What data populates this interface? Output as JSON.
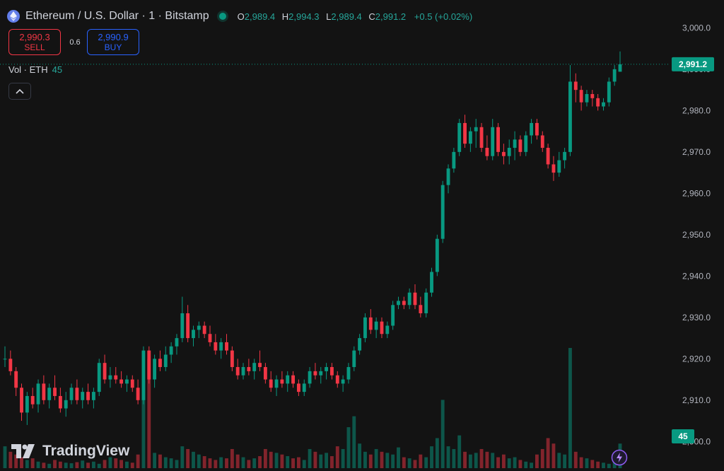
{
  "header": {
    "symbol": "Ethereum / U.S. Dollar · 1 · Bitstamp",
    "o_key": "O",
    "o_val": "2,989.4",
    "h_key": "H",
    "h_val": "2,994.3",
    "l_key": "L",
    "l_val": "2,989.4",
    "c_key": "C",
    "c_val": "2,991.2",
    "change": "+0.5 (+0.02%)"
  },
  "trade": {
    "sell_price": "2,990.3",
    "sell_label": "SELL",
    "spread": "0.6",
    "buy_price": "2,990.9",
    "buy_label": "BUY"
  },
  "volume": {
    "label": "Vol · ETH",
    "value": "45"
  },
  "brand": {
    "name": "TradingView"
  },
  "icons": {
    "symbol": "ethereum-icon",
    "collapse": "chevron-up-icon",
    "brand": "tradingview-logo-icon",
    "flash": "lightning-icon"
  },
  "colors": {
    "up": "#089981",
    "down": "#f23645",
    "background": "#131313",
    "axis_text": "#b2b5be"
  },
  "chart_data": {
    "type": "candlestick",
    "interval": "1",
    "y_axis": {
      "ylim": [
        2898,
        3004
      ],
      "ticks": [
        2900,
        2910,
        2920,
        2930,
        2940,
        2950,
        2960,
        2970,
        2980,
        2990,
        3000
      ],
      "tick_labels": [
        "2,900.0",
        "2,910.0",
        "2,920.0",
        "2,930.0",
        "2,940.0",
        "2,950.0",
        "2,960.0",
        "2,970.0",
        "2,980.0",
        "2,990.0",
        "3,000.0"
      ]
    },
    "last_price": 2991.2,
    "last_price_label": "2,991.2",
    "last_volume": 45,
    "last_volume_label": "45",
    "volume_max": 220,
    "ohlc": [
      [
        2920,
        2923,
        2918,
        2920
      ],
      [
        2920,
        2922,
        2916,
        2917
      ],
      [
        2917,
        2918,
        2911,
        2913
      ],
      [
        2913,
        2914,
        2905,
        2907
      ],
      [
        2907,
        2912,
        2904,
        2911
      ],
      [
        2911,
        2913,
        2908,
        2909
      ],
      [
        2909,
        2915,
        2907,
        2914
      ],
      [
        2914,
        2916,
        2909,
        2910
      ],
      [
        2910,
        2914,
        2908,
        2913
      ],
      [
        2913,
        2916,
        2910,
        2911
      ],
      [
        2911,
        2913,
        2907,
        2908
      ],
      [
        2908,
        2912,
        2906,
        2910
      ],
      [
        2910,
        2914,
        2909,
        2913
      ],
      [
        2913,
        2915,
        2909,
        2910
      ],
      [
        2910,
        2913,
        2908,
        2912
      ],
      [
        2912,
        2914,
        2909,
        2910
      ],
      [
        2910,
        2913,
        2908,
        2912
      ],
      [
        2912,
        2920,
        2911,
        2919
      ],
      [
        2919,
        2921,
        2914,
        2915
      ],
      [
        2915,
        2918,
        2913,
        2916
      ],
      [
        2916,
        2918,
        2914,
        2915
      ],
      [
        2915,
        2917,
        2913,
        2914
      ],
      [
        2914,
        2916,
        2912,
        2915
      ],
      [
        2915,
        2916,
        2912,
        2913
      ],
      [
        2913,
        2915,
        2909,
        2910
      ],
      [
        2910,
        2923,
        2909,
        2922
      ],
      [
        2922,
        2923,
        2914,
        2915
      ],
      [
        2915,
        2921,
        2913,
        2920
      ],
      [
        2920,
        2922,
        2917,
        2918
      ],
      [
        2918,
        2923,
        2917,
        2921
      ],
      [
        2921,
        2924,
        2919,
        2923
      ],
      [
        2923,
        2926,
        2921,
        2925
      ],
      [
        2925,
        2935,
        2924,
        2931
      ],
      [
        2931,
        2933,
        2924,
        2925
      ],
      [
        2925,
        2928,
        2923,
        2927
      ],
      [
        2927,
        2929,
        2925,
        2928
      ],
      [
        2928,
        2929,
        2925,
        2926
      ],
      [
        2926,
        2928,
        2923,
        2924
      ],
      [
        2924,
        2926,
        2921,
        2922
      ],
      [
        2922,
        2925,
        2920,
        2924
      ],
      [
        2924,
        2926,
        2921,
        2922
      ],
      [
        2922,
        2923,
        2917,
        2918
      ],
      [
        2918,
        2920,
        2915,
        2916
      ],
      [
        2916,
        2919,
        2915,
        2918
      ],
      [
        2918,
        2920,
        2916,
        2917
      ],
      [
        2917,
        2920,
        2915,
        2919
      ],
      [
        2919,
        2922,
        2917,
        2918
      ],
      [
        2918,
        2919,
        2914,
        2915
      ],
      [
        2915,
        2917,
        2912,
        2913
      ],
      [
        2913,
        2916,
        2911,
        2915
      ],
      [
        2915,
        2917,
        2913,
        2914
      ],
      [
        2914,
        2917,
        2912,
        2916
      ],
      [
        2916,
        2917,
        2913,
        2914
      ],
      [
        2914,
        2915,
        2911,
        2912
      ],
      [
        2912,
        2915,
        2911,
        2914
      ],
      [
        2914,
        2918,
        2913,
        2917
      ],
      [
        2917,
        2919,
        2915,
        2916
      ],
      [
        2916,
        2918,
        2914,
        2917
      ],
      [
        2917,
        2919,
        2915,
        2918
      ],
      [
        2918,
        2919,
        2915,
        2916
      ],
      [
        2916,
        2917,
        2913,
        2914
      ],
      [
        2914,
        2916,
        2912,
        2915
      ],
      [
        2915,
        2919,
        2914,
        2918
      ],
      [
        2918,
        2923,
        2917,
        2922
      ],
      [
        2922,
        2926,
        2921,
        2925
      ],
      [
        2925,
        2931,
        2924,
        2930
      ],
      [
        2930,
        2932,
        2926,
        2927
      ],
      [
        2927,
        2930,
        2925,
        2929
      ],
      [
        2929,
        2930,
        2925,
        2926
      ],
      [
        2926,
        2929,
        2925,
        2928
      ],
      [
        2928,
        2934,
        2927,
        2933
      ],
      [
        2933,
        2935,
        2932,
        2934
      ],
      [
        2934,
        2935,
        2932,
        2933
      ],
      [
        2933,
        2937,
        2932,
        2936
      ],
      [
        2936,
        2938,
        2932,
        2933
      ],
      [
        2933,
        2935,
        2930,
        2931
      ],
      [
        2931,
        2937,
        2930,
        2936
      ],
      [
        2936,
        2942,
        2935,
        2941
      ],
      [
        2941,
        2950,
        2940,
        2949
      ],
      [
        2949,
        2963,
        2948,
        2962
      ],
      [
        2962,
        2967,
        2960,
        2966
      ],
      [
        2966,
        2971,
        2965,
        2970
      ],
      [
        2970,
        2978,
        2969,
        2977
      ],
      [
        2977,
        2979,
        2971,
        2972
      ],
      [
        2972,
        2976,
        2970,
        2975
      ],
      [
        2975,
        2978,
        2971,
        2976
      ],
      [
        2976,
        2977,
        2970,
        2971
      ],
      [
        2971,
        2974,
        2968,
        2969
      ],
      [
        2969,
        2978,
        2968,
        2976
      ],
      [
        2976,
        2977,
        2969,
        2970
      ],
      [
        2970,
        2972,
        2967,
        2969
      ],
      [
        2969,
        2973,
        2967,
        2971
      ],
      [
        2971,
        2975,
        2968,
        2973
      ],
      [
        2973,
        2974,
        2969,
        2970
      ],
      [
        2970,
        2975,
        2969,
        2974
      ],
      [
        2974,
        2978,
        2972,
        2977
      ],
      [
        2977,
        2978,
        2973,
        2974
      ],
      [
        2974,
        2975,
        2970,
        2971
      ],
      [
        2971,
        2972,
        2966,
        2967
      ],
      [
        2967,
        2969,
        2963,
        2965
      ],
      [
        2965,
        2970,
        2964,
        2968
      ],
      [
        2968,
        2971,
        2966,
        2970
      ],
      [
        2970,
        2991,
        2969,
        2987
      ],
      [
        2987,
        2989,
        2982,
        2985
      ],
      [
        2985,
        2986,
        2980,
        2982
      ],
      [
        2982,
        2985,
        2981,
        2984
      ],
      [
        2984,
        2985,
        2981,
        2983
      ],
      [
        2983,
        2984,
        2980,
        2981
      ],
      [
        2981,
        2983,
        2980,
        2982
      ],
      [
        2982,
        2988,
        2981,
        2987
      ],
      [
        2987,
        2991,
        2986,
        2990
      ],
      [
        2989.4,
        2994.3,
        2989.4,
        2991.2
      ]
    ],
    "volume": [
      40,
      30,
      25,
      20,
      15,
      18,
      12,
      10,
      8,
      15,
      12,
      10,
      9,
      11,
      14,
      10,
      12,
      8,
      15,
      20,
      18,
      15,
      12,
      10,
      25,
      160,
      200,
      28,
      25,
      20,
      18,
      15,
      40,
      35,
      30,
      25,
      22,
      18,
      15,
      20,
      18,
      35,
      25,
      20,
      15,
      18,
      22,
      35,
      30,
      28,
      25,
      22,
      18,
      20,
      15,
      35,
      30,
      25,
      28,
      22,
      40,
      35,
      75,
      95,
      45,
      30,
      25,
      35,
      30,
      28,
      25,
      38,
      20,
      18,
      15,
      25,
      20,
      40,
      55,
      125,
      40,
      35,
      60,
      30,
      25,
      28,
      35,
      30,
      28,
      20,
      25,
      18,
      20,
      15,
      12,
      10,
      25,
      35,
      55,
      45,
      28,
      25,
      220,
      30,
      20,
      18,
      15,
      12,
      10,
      8,
      20,
      45
    ]
  }
}
